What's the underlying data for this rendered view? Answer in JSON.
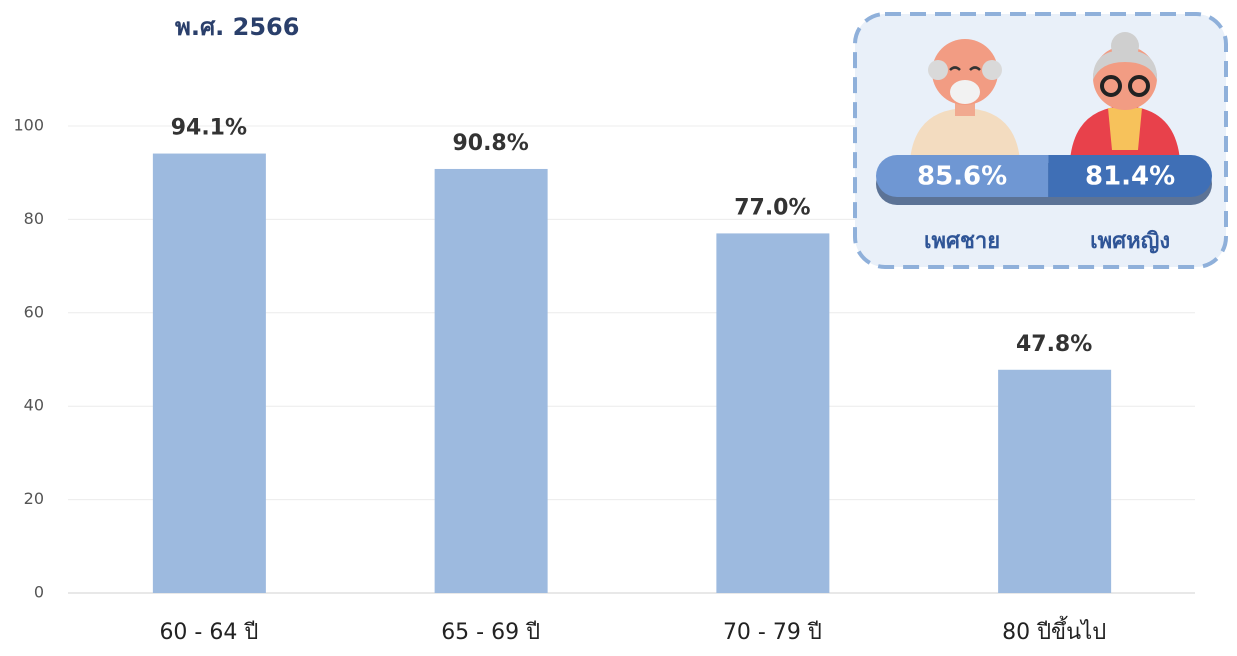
{
  "chart_data": {
    "type": "bar",
    "title": "พ.ศ. 2566",
    "categories": [
      "60 - 64 ปี",
      "65 - 69 ปี",
      "70 - 79 ปี",
      "80 ปีขึ้นไป"
    ],
    "values": [
      94.1,
      90.8,
      77.0,
      47.8
    ],
    "value_labels": [
      "94.1%",
      "90.8%",
      "77.0%",
      "47.8%"
    ],
    "color": "#9dbadf",
    "ylim": [
      0,
      100
    ],
    "yticks": [
      0,
      20,
      40,
      60,
      80,
      100
    ],
    "grid": true,
    "inset": {
      "categories": [
        "เพศชาย",
        "เพศหญิง"
      ],
      "values": [
        85.6,
        81.4
      ],
      "value_labels": [
        "85.6%",
        "81.4%"
      ],
      "colors": [
        "#6f97d3",
        "#3f6fb6"
      ]
    }
  }
}
